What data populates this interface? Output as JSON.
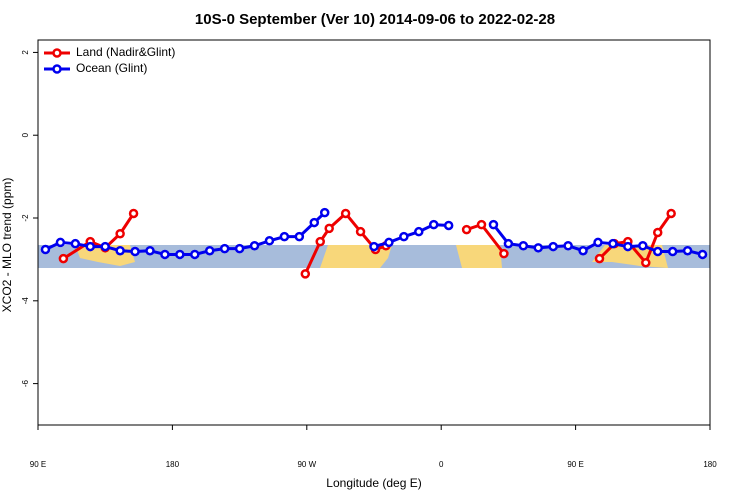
{
  "chart_data": {
    "type": "line",
    "title": "10S-0 September (Ver 10)   2014-09-06 to 2022-02-28",
    "xlabel": "Longitude (deg E)",
    "ylabel": "XCO2 - MLO trend (ppm)",
    "xlim": [
      90,
      540
    ],
    "ylim": [
      -7.0,
      2.3
    ],
    "xticks": [
      {
        "value": 90,
        "label": "90 E"
      },
      180,
      {
        "value": 270,
        "label": "90 W"
      },
      {
        "value": 360,
        "label": "0"
      },
      {
        "value": 450,
        "label": "90 E"
      },
      {
        "value": 540,
        "label": "180"
      }
    ],
    "yticks": [
      2,
      0,
      -2,
      -4,
      -6
    ],
    "legend": "top-left",
    "series": [
      {
        "name": "Land (Nadir&Glint)",
        "color": "#ee0000",
        "x": [
          107,
          125,
          135,
          145,
          154,
          null,
          269,
          279,
          285,
          296,
          306,
          316,
          323,
          null,
          377,
          387,
          402,
          null,
          466,
          476,
          485,
          497,
          505,
          514
        ],
        "values": [
          -2.98,
          -2.57,
          -2.72,
          -2.38,
          -1.89,
          null,
          -3.35,
          -2.57,
          -2.25,
          -1.89,
          -2.33,
          -2.76,
          -2.67,
          null,
          -2.28,
          -2.16,
          -2.86,
          null,
          -2.98,
          -2.62,
          -2.57,
          -3.08,
          -2.35,
          -1.89
        ]
      },
      {
        "name": "Ocean (Glint)",
        "color": "#0000ee",
        "x": [
          95,
          105,
          115,
          125,
          135,
          145,
          155,
          165,
          175,
          185,
          195,
          205,
          215,
          225,
          235,
          245,
          255,
          265,
          275,
          282,
          null,
          315,
          325,
          335,
          345,
          355,
          365,
          null,
          395,
          405,
          415,
          425,
          435,
          445,
          455,
          465,
          475,
          485,
          495,
          505,
          515,
          525,
          535
        ],
        "values": [
          -2.76,
          -2.59,
          -2.62,
          -2.69,
          -2.69,
          -2.79,
          -2.81,
          -2.79,
          -2.88,
          -2.88,
          -2.88,
          -2.79,
          -2.74,
          -2.74,
          -2.67,
          -2.55,
          -2.45,
          -2.45,
          -2.11,
          -1.87,
          null,
          -2.69,
          -2.59,
          -2.45,
          -2.33,
          -2.16,
          -2.18,
          null,
          -2.16,
          -2.62,
          -2.67,
          -2.72,
          -2.69,
          -2.67,
          -2.79,
          -2.59,
          -2.62,
          -2.69,
          -2.67,
          -2.81,
          -2.81,
          -2.79,
          -2.88
        ]
      }
    ]
  }
}
